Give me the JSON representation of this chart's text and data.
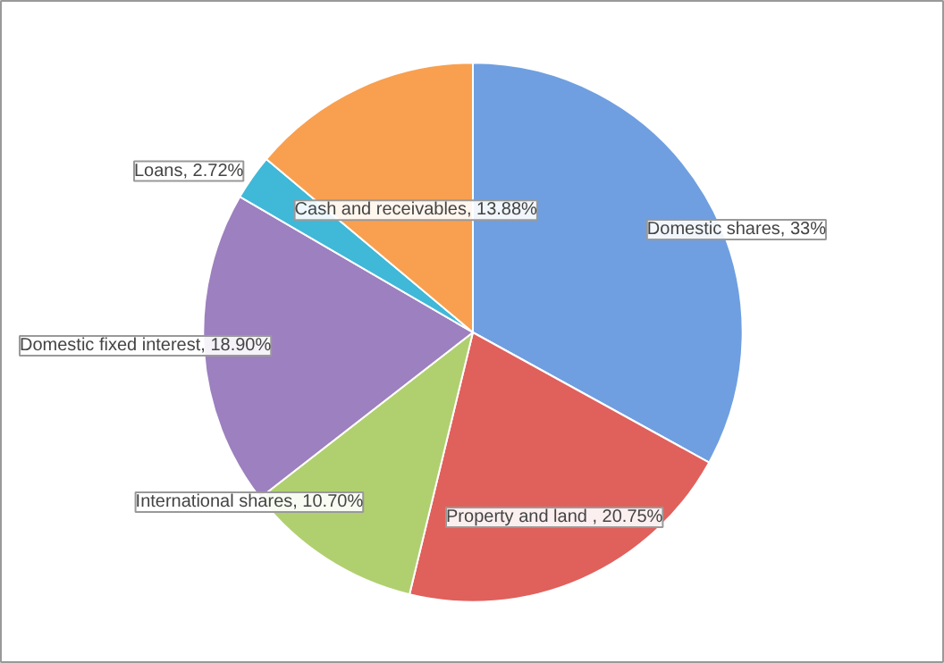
{
  "chart_data": {
    "type": "pie",
    "categories": [
      "Domestic shares",
      "Property and land ",
      "International shares",
      "Domestic fixed interest",
      "Loans",
      "Cash and receivables"
    ],
    "values": [
      33,
      20.75,
      10.7,
      18.9,
      2.72,
      13.88
    ],
    "value_labels": [
      "33%",
      "20.75%",
      "10.70%",
      "18.90%",
      "2.72%",
      "13.88%"
    ],
    "colors": [
      "#6f9fe0",
      "#e0605c",
      "#b0d070",
      "#9d80bf",
      "#40b8d8",
      "#f8a050"
    ]
  }
}
